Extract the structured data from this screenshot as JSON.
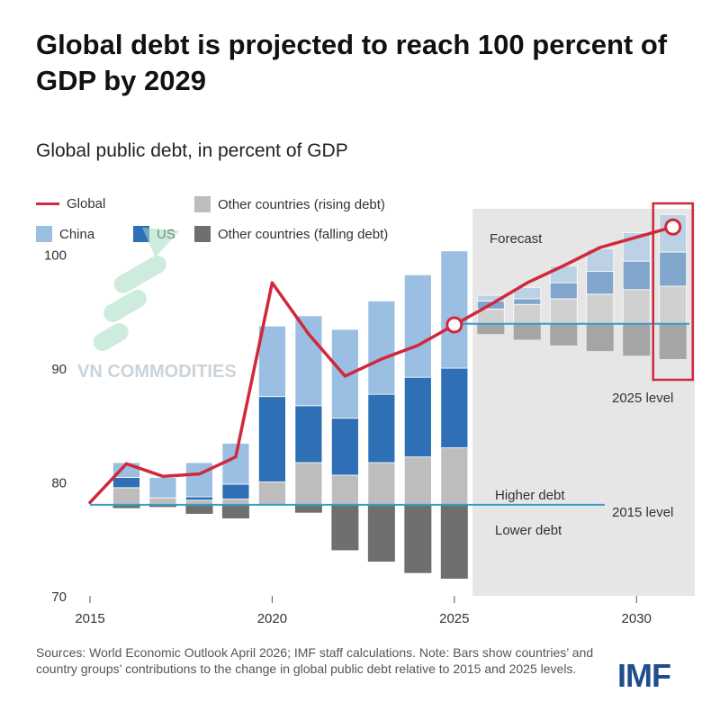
{
  "title": "Global debt is projected to reach 100 percent of GDP by 2029",
  "subtitle": "Global public debt, in percent of GDP",
  "legend": {
    "global": "Global",
    "china": "China",
    "us": "US",
    "other_rising": "Other countries (rising debt)",
    "other_falling": "Other countries (falling debt)"
  },
  "watermark": "VN COMMODITIES",
  "note": "Sources: World Economic Outlook April 2026; IMF staff calculations. Note: Bars show countries’ and country groups’ contributions to the change in global public debt relative to 2015 and 2025 levels.",
  "logo": "IMF",
  "colors": {
    "global": "#d0283c",
    "china": "#9bbfe2",
    "us": "#2e6fb5",
    "other_rising": "#bdbdbd",
    "other_falling": "#6f6f6f",
    "reference": "#3a9bc6",
    "forecast_bg": "#e6e6e6"
  },
  "chart_data": {
    "type": "bar",
    "subtype": "stacked contribution bars with line overlay",
    "x": [
      2016,
      2017,
      2018,
      2019,
      2020,
      2021,
      2022,
      2023,
      2024,
      2025,
      2026,
      2027,
      2028,
      2029,
      2030,
      2031
    ],
    "x_ticks": [
      2015,
      2020,
      2025,
      2030
    ],
    "y_ticks": [
      70,
      80,
      90,
      100
    ],
    "ylim": [
      70,
      104
    ],
    "xlim": [
      2015,
      2031.6
    ],
    "series": [
      {
        "name": "Other countries (falling debt)",
        "values": [
          -0.3,
          -0.2,
          -0.8,
          -1.2,
          0,
          -0.7,
          -4,
          -5,
          -6,
          -6.5,
          -0.9,
          -1.4,
          -1.9,
          -2.4,
          -2.8,
          -3.1
        ]
      },
      {
        "name": "Other countries (rising debt)",
        "values": [
          1.5,
          0.6,
          0.4,
          0.5,
          2,
          3.7,
          2.6,
          3.7,
          4.2,
          5,
          1.3,
          1.7,
          2.2,
          2.6,
          3,
          3.3
        ]
      },
      {
        "name": "US",
        "values": [
          0.9,
          0,
          0.3,
          1.3,
          7.5,
          5,
          5,
          6,
          7,
          7,
          0.7,
          0.5,
          1.4,
          2,
          2.5,
          3
        ]
      },
      {
        "name": "China",
        "values": [
          1.3,
          1.8,
          3,
          3.6,
          6.2,
          7.9,
          7.8,
          8.2,
          9,
          10.3,
          0.5,
          1,
          1.5,
          2,
          2.5,
          3.3
        ]
      }
    ],
    "bar_baseline": {
      "through_2025": 78,
      "forecast": 93.9
    },
    "line": {
      "name": "Global",
      "x": [
        2015,
        2016,
        2017,
        2018,
        2019,
        2020,
        2021,
        2022,
        2023,
        2024,
        2025,
        2026,
        2027,
        2028,
        2029,
        2030,
        2031
      ],
      "values": [
        78.2,
        81.6,
        80.5,
        80.7,
        82.2,
        97.5,
        93,
        89.3,
        90.8,
        92,
        93.8,
        95.6,
        97.5,
        99,
        100.6,
        101.5,
        102.4
      ]
    },
    "reference_lines": [
      {
        "label": "2015 level",
        "value": 78
      },
      {
        "label": "2025 level",
        "value": 93.9
      }
    ],
    "annotations": {
      "forecast": "Forecast",
      "higher_debt": "Higher debt",
      "lower_debt": "Lower debt",
      "level_2015": "2015 level",
      "level_2025": "2025 level"
    },
    "forecast_start": 2025.5
  }
}
